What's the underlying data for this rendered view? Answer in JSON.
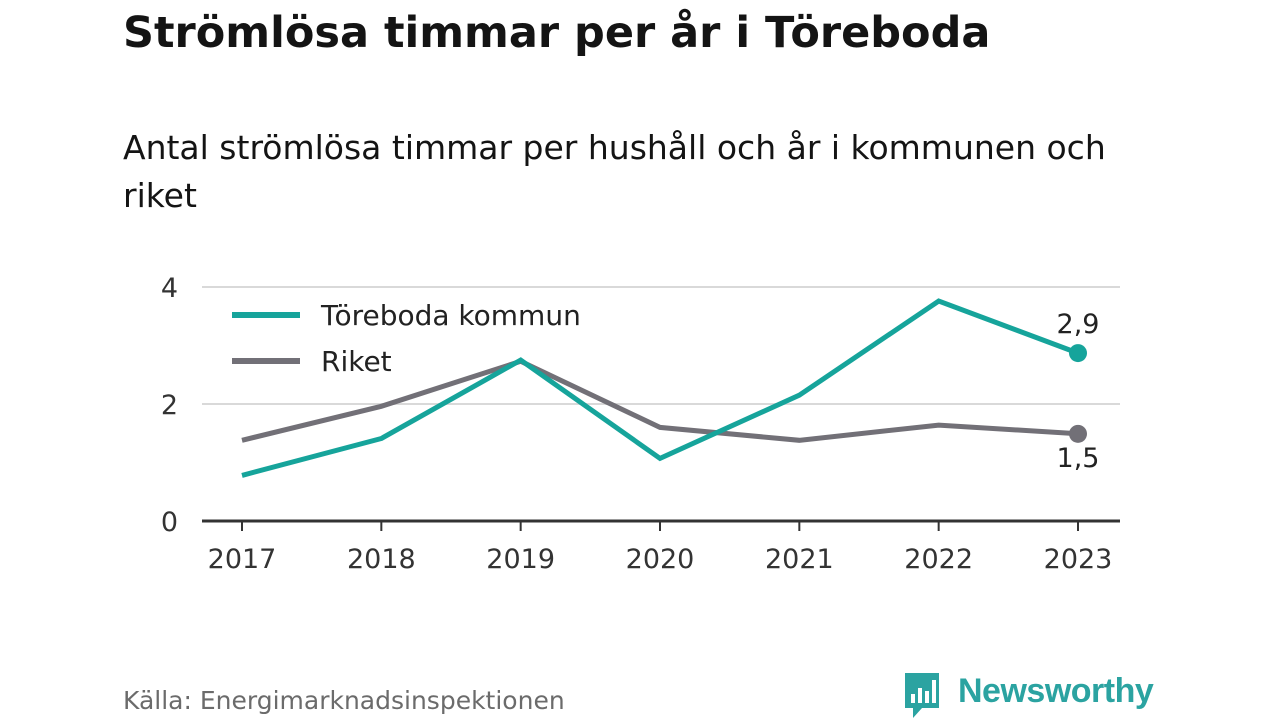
{
  "title": "Strömlösa timmar per år i Töreboda",
  "subtitle": "Antal strömlösa timmar per hushåll och år i kommunen och riket",
  "source": "Källa: Energimarknadsinspektionen",
  "brand": {
    "name": "Newsworthy",
    "icon": "bar-chart-speech-bubble-icon",
    "color": "#2ba3a1"
  },
  "chart_data": {
    "type": "line",
    "x": [
      "2017",
      "2018",
      "2019",
      "2020",
      "2021",
      "2022",
      "2023"
    ],
    "ylim": [
      0,
      4
    ],
    "yticks": [
      "0",
      "2",
      "4"
    ],
    "grid": true,
    "legend_position": "top-left",
    "series": [
      {
        "name": "Töreboda kommun",
        "color": "#16a49b",
        "values": [
          0.78,
          1.41,
          2.75,
          1.07,
          2.15,
          3.76,
          2.87
        ],
        "end_label": "2,9"
      },
      {
        "name": "Riket",
        "color": "#727077",
        "values": [
          1.38,
          1.96,
          2.73,
          1.6,
          1.38,
          1.64,
          1.49
        ],
        "end_label": "1,5"
      }
    ]
  }
}
